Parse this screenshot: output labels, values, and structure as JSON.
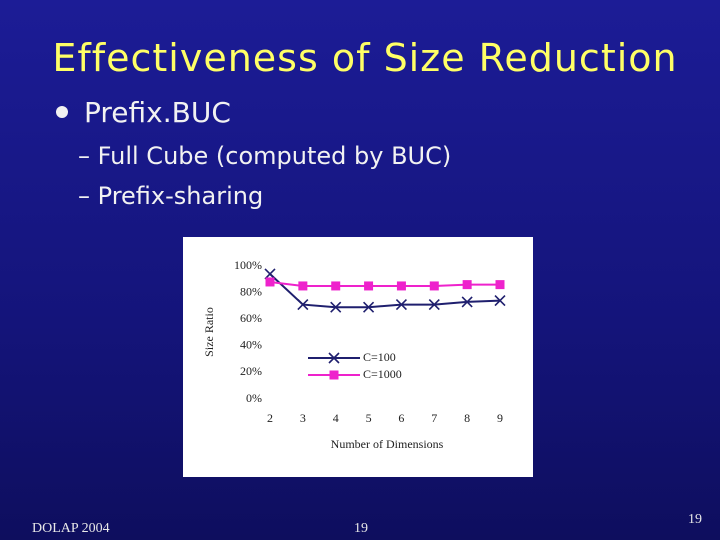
{
  "header": {
    "title": "Effectiveness of Size Reduction"
  },
  "bullets": [
    {
      "text": "Prefix.BUC",
      "children": [
        "Full Cube (computed by BUC)",
        "Prefix-sharing"
      ]
    }
  ],
  "footer": {
    "left": "DOLAP 2004",
    "center": "19",
    "page_number": "19"
  },
  "chart_data": {
    "type": "line",
    "x_label": "Number of  Dimensions",
    "y_label": "Size Ratio",
    "x": [
      2,
      3,
      4,
      5,
      6,
      7,
      8,
      9
    ],
    "xlim": [
      2,
      9
    ],
    "xticks": [
      2,
      3,
      4,
      5,
      6,
      7,
      8,
      9
    ],
    "ylim": [
      0,
      100
    ],
    "yticks": [
      {
        "value": 0,
        "label": "0%"
      },
      {
        "value": 20,
        "label": "20%"
      },
      {
        "value": 40,
        "label": "40%"
      },
      {
        "value": 60,
        "label": "60%"
      },
      {
        "value": 80,
        "label": "80%"
      },
      {
        "value": 100,
        "label": "100%"
      }
    ],
    "series": [
      {
        "name": "C=100",
        "color": "#1f1f6e",
        "marker": "x",
        "values": [
          94,
          71,
          69,
          69,
          71,
          71,
          73,
          74
        ]
      },
      {
        "name": "C=1000",
        "color": "#ee22cc",
        "marker": "square",
        "values": [
          88,
          85,
          85,
          85,
          85,
          85,
          86,
          86
        ]
      }
    ]
  }
}
